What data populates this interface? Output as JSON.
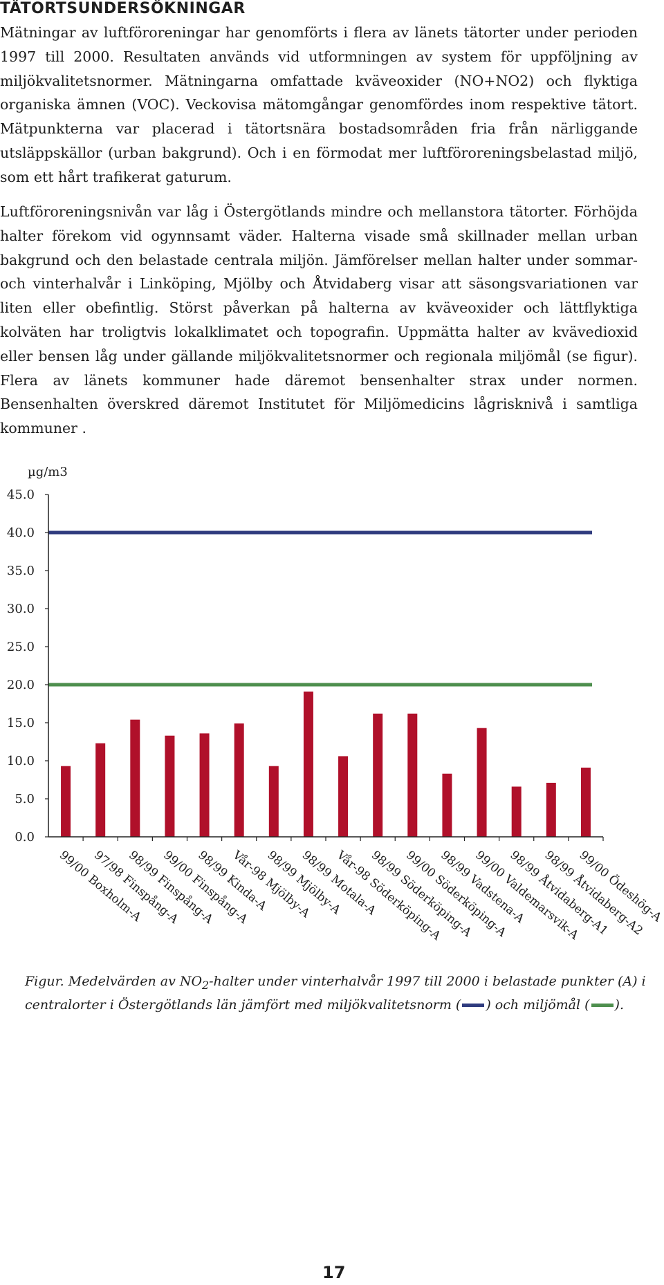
{
  "heading": "TÄTORTSUNDERSÖKNINGAR",
  "paragraphs": [
    "Mätningar av luftföroreningar har genomförts i flera av länets tätorter under perioden 1997 till 2000. Resultaten används vid utformningen av system för uppföljning av miljökvalitetsnormer. Mätningarna omfattade kväveoxider (NO+NO2) och flyktiga organiska ämnen (VOC). Veckovisa mätomgångar genomfördes inom respektive tätort. Mätpunkterna var placerad i tätortsnära bostadsområden fria från närliggande utsläppskällor (urban bakgrund). Och i en förmodat mer luftföroreningsbelastad miljö, som ett hårt trafikerat gaturum.",
    "Luftföroreningsnivån var låg i Östergötlands mindre och mellanstora tätorter. Förhöjda halter förekom vid ogynnsamt väder. Halterna visade små skillnader mellan urban bakgrund och den belastade centrala miljön. Jämförelser mellan halter under sommar- och vinterhalvår i Linköping, Mjölby och Åtvidaberg visar att säsongsvariationen var liten eller obefintlig. Störst påverkan på halterna av kväveoxider och lättflyktiga kolväten har troligtvis lokalklimatet och topografin. Uppmätta halter av kvävedioxid eller bensen låg under gällande miljökvalitetsnormer och regionala miljömål (se figur). Flera av länets kommuner hade däremot bensenhalter strax under normen. Bensenhalten överskred däremot Institutet för Miljömedicins lågrisknivå i samtliga kommuner ."
  ],
  "chart_data": {
    "type": "bar",
    "unit_label": "µg/m3",
    "ylim": [
      0,
      45
    ],
    "yticks": [
      "45.0",
      "40.0",
      "35.0",
      "30.0",
      "25.0",
      "20.0",
      "15.0",
      "10.0",
      "5.0",
      "0.0"
    ],
    "categories": [
      "99/00 Boxholm-A",
      "97/98 Finspång-A",
      "98/99 Finspång-A",
      "99/00 Finspång-A",
      "98/99 Kinda-A",
      "Vår-98 Mjölby-A",
      "98/99 Mjölby-A",
      "98/99 Motala-A",
      "Vår-98 Söderköping-A",
      "98/99 Söderköping-A",
      "99/00 Söderköping-A",
      "98/99 Vadstena-A",
      "99/00 Valdemarsvik-A",
      "98/99 Åtvidaberg-A1",
      "98/99 Åtvidaberg-A2",
      "99/00 Ödeshög-A"
    ],
    "values": [
      9.3,
      12.3,
      15.4,
      13.3,
      13.6,
      14.9,
      9.3,
      19.1,
      10.6,
      16.2,
      16.2,
      8.3,
      14.3,
      6.6,
      7.1,
      9.1
    ],
    "reference_lines": [
      {
        "value": 40,
        "color": "#2f3b7e"
      },
      {
        "value": 20,
        "color": "#4e8f4e"
      }
    ],
    "bar_color": "#b0102a",
    "grid": false
  },
  "caption": {
    "part1": "Figur. Medelvärden av NO",
    "sub": "2",
    "part2": "-halter under vinterhalvår 1997 till 2000 i belastade punkter (A) i centralorter i Östergötlands län jämfört med miljökvalitetsnorm (",
    "part3": ") och miljömål (",
    "part4": ").",
    "norm_color": "#2f3b7e",
    "goal_color": "#4e8f4e"
  },
  "page_number": "17"
}
